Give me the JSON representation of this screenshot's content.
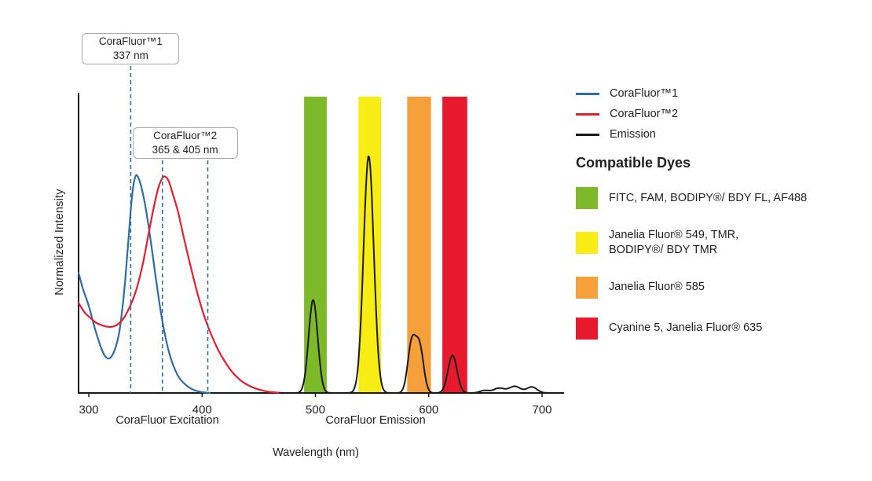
{
  "figure": {
    "background": "#ffffff",
    "text_color": "#231f20"
  },
  "chart_data": {
    "type": "line",
    "title": "",
    "xlabel": "Wavelength (nm)",
    "ylabel": "Normalized Intensity",
    "x_axis": {
      "ticks": [
        300,
        400,
        500,
        600,
        700
      ],
      "unit": "nm"
    },
    "y_axis": {
      "min": 0,
      "max": 1,
      "ticks_shown": false
    },
    "section_labels": [
      {
        "text": "CoraFluor Excitation",
        "center_nm": 369
      },
      {
        "text": "CoraFluor Emission",
        "center_nm": 553
      }
    ],
    "callouts": [
      {
        "title": "CoraFluor™1",
        "subtitle": "337 nm",
        "lines_nm": [
          337
        ]
      },
      {
        "title": "CoraFluor™2",
        "subtitle": "365 & 405 nm",
        "lines_nm": [
          365,
          405
        ]
      }
    ],
    "callout_line_color": "#2d6da4",
    "bands": [
      {
        "dye": "FITC, FAM, BODIPY®/ BDY FL, AF488",
        "color": "#7db929",
        "from_nm": 490,
        "to_nm": 510
      },
      {
        "dye": "Janelia Fluor® 549, TMR, BODIPY®/ BDY TMR",
        "color": "#f7ec13",
        "from_nm": 538,
        "to_nm": 558
      },
      {
        "dye": "Janelia Fluor® 585",
        "color": "#f5a03b",
        "from_nm": 581,
        "to_nm": 602
      },
      {
        "dye": "Cyanine 5, Janelia Fluor® 635",
        "color": "#e8192c",
        "from_nm": 612,
        "to_nm": 634
      }
    ],
    "series": [
      {
        "name": "CoraFluor™1",
        "kind": "excitation",
        "color": "#2d6da4",
        "points": [
          [
            291,
            0.4
          ],
          [
            295,
            0.345
          ],
          [
            300,
            0.29
          ],
          [
            305,
            0.22
          ],
          [
            310,
            0.16
          ],
          [
            314,
            0.125
          ],
          [
            318,
            0.115
          ],
          [
            322,
            0.135
          ],
          [
            326,
            0.185
          ],
          [
            329,
            0.26
          ],
          [
            332,
            0.37
          ],
          [
            335,
            0.51
          ],
          [
            338,
            0.65
          ],
          [
            341,
            0.72
          ],
          [
            344,
            0.715
          ],
          [
            348,
            0.66
          ],
          [
            352,
            0.575
          ],
          [
            356,
            0.47
          ],
          [
            360,
            0.36
          ],
          [
            364,
            0.26
          ],
          [
            368,
            0.18
          ],
          [
            372,
            0.12
          ],
          [
            377,
            0.07
          ],
          [
            382,
            0.04
          ],
          [
            388,
            0.02
          ],
          [
            394,
            0.008
          ],
          [
            400,
            0.003
          ],
          [
            407,
            0.0
          ]
        ]
      },
      {
        "name": "CoraFluor™2",
        "kind": "excitation",
        "color": "#e41e2d",
        "points": [
          [
            291,
            0.3
          ],
          [
            296,
            0.27
          ],
          [
            300,
            0.255
          ],
          [
            306,
            0.235
          ],
          [
            312,
            0.225
          ],
          [
            318,
            0.22
          ],
          [
            324,
            0.225
          ],
          [
            330,
            0.245
          ],
          [
            336,
            0.285
          ],
          [
            342,
            0.345
          ],
          [
            348,
            0.435
          ],
          [
            353,
            0.535
          ],
          [
            358,
            0.63
          ],
          [
            362,
            0.69
          ],
          [
            366,
            0.72
          ],
          [
            370,
            0.71
          ],
          [
            374,
            0.665
          ],
          [
            379,
            0.6
          ],
          [
            384,
            0.515
          ],
          [
            390,
            0.42
          ],
          [
            396,
            0.33
          ],
          [
            402,
            0.255
          ],
          [
            408,
            0.195
          ],
          [
            414,
            0.145
          ],
          [
            420,
            0.105
          ],
          [
            427,
            0.068
          ],
          [
            434,
            0.042
          ],
          [
            441,
            0.025
          ],
          [
            448,
            0.014
          ],
          [
            456,
            0.006
          ],
          [
            464,
            0.002
          ],
          [
            472,
            0.0
          ]
        ]
      },
      {
        "name": "Emission",
        "kind": "emission",
        "color": "#1a1a1a",
        "range_nm": [
          468,
          710
        ],
        "peaks": [
          {
            "center_nm": 498,
            "height": 0.31,
            "sigma_nm": 4.0
          },
          {
            "center_nm": 547,
            "height": 0.79,
            "sigma_nm": 4.5
          },
          {
            "center_nm": 585,
            "height": 0.165,
            "sigma_nm": 3.5
          },
          {
            "center_nm": 592,
            "height": 0.15,
            "sigma_nm": 3.5
          },
          {
            "center_nm": 621,
            "height": 0.125,
            "sigma_nm": 4.0
          },
          {
            "center_nm": 649,
            "height": 0.008,
            "sigma_nm": 4.0
          },
          {
            "center_nm": 662,
            "height": 0.016,
            "sigma_nm": 5.0
          },
          {
            "center_nm": 676,
            "height": 0.022,
            "sigma_nm": 5.0
          },
          {
            "center_nm": 691,
            "height": 0.02,
            "sigma_nm": 4.5
          }
        ]
      }
    ]
  },
  "legend": {
    "series": [
      {
        "label": "CoraFluor™1",
        "color": "#2d6da4"
      },
      {
        "label": "CoraFluor™2",
        "color": "#e41e2d"
      },
      {
        "label": "Emission",
        "color": "#1a1a1a"
      }
    ],
    "heading": "Compatible Dyes",
    "dyes": [
      {
        "label": "FITC, FAM, BODIPY®/ BDY FL, AF488",
        "color": "#7db929"
      },
      {
        "label": "Janelia Fluor® 549, TMR,\nBODIPY®/ BDY TMR",
        "color": "#f7ec13"
      },
      {
        "label": "Janelia Fluor® 585",
        "color": "#f5a03b"
      },
      {
        "label": "Cyanine 5, Janelia Fluor® 635",
        "color": "#e8192c"
      }
    ]
  }
}
